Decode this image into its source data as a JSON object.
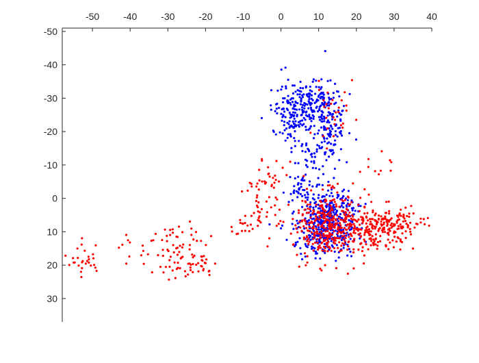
{
  "chart_data": {
    "type": "scatter",
    "xlim": [
      -58,
      40
    ],
    "ylim": [
      -51,
      37
    ],
    "x_axis_position": "top",
    "y_axis_direction": "reversed",
    "grid": false,
    "x_ticks": [
      -50,
      -40,
      -30,
      -20,
      -10,
      0,
      10,
      20,
      30,
      40
    ],
    "y_ticks": [
      -50,
      -40,
      -30,
      -20,
      -10,
      0,
      10,
      20,
      30
    ],
    "colors": {
      "series_blue": "#0000ff",
      "series_red": "#ff0000",
      "axis": "#262626"
    },
    "clusters": [
      {
        "series": "red",
        "cx": -52,
        "cy": 18.5,
        "sx": 2.5,
        "sy": 2.5,
        "n": 28
      },
      {
        "series": "red",
        "cx": -38,
        "cy": 15,
        "sx": 2.5,
        "sy": 3,
        "n": 12
      },
      {
        "series": "red",
        "cx": -27,
        "cy": 13,
        "sx": 4,
        "sy": 3,
        "n": 45
      },
      {
        "series": "red",
        "cx": -25,
        "cy": 20,
        "sx": 4,
        "sy": 2,
        "n": 45
      },
      {
        "series": "red",
        "cx": -11,
        "cy": 9,
        "sx": 2,
        "sy": 1.5,
        "n": 12
      },
      {
        "series": "red",
        "cx": -6,
        "cy": 3,
        "sx": 2,
        "sy": 6,
        "n": 35
      },
      {
        "series": "red",
        "cx": -3,
        "cy": -6,
        "sx": 2,
        "sy": 2.5,
        "n": 25
      },
      {
        "series": "blue",
        "cx": 3,
        "cy": -25,
        "sx": 2.8,
        "sy": 4,
        "n": 130
      },
      {
        "series": "blue",
        "cx": 8,
        "cy": -29,
        "sx": 3,
        "sy": 4,
        "n": 120
      },
      {
        "series": "blue",
        "cx": 13,
        "cy": -22,
        "sx": 2.2,
        "sy": 5.5,
        "n": 130
      },
      {
        "series": "blue",
        "cx": 8,
        "cy": -14,
        "sx": 2.5,
        "sy": 3,
        "n": 30
      },
      {
        "series": "blue",
        "cx": 5,
        "cy": -4,
        "sx": 1.5,
        "sy": 2.5,
        "n": 25
      },
      {
        "series": "blue",
        "cx": 12,
        "cy": 7,
        "sx": 4,
        "sy": 5,
        "n": 480
      },
      {
        "series": "red",
        "cx": 13,
        "cy": 8,
        "sx": 5.5,
        "sy": 5,
        "n": 380
      },
      {
        "series": "red",
        "cx": 25,
        "cy": 9,
        "sx": 5,
        "sy": 3,
        "n": 160
      },
      {
        "series": "red",
        "cx": 30,
        "cy": 7,
        "sx": 4,
        "sy": 2.5,
        "n": 60
      },
      {
        "series": "red",
        "cx": 14,
        "cy": -25,
        "sx": 3.5,
        "sy": 6,
        "n": 30
      },
      {
        "series": "red",
        "cx": 26,
        "cy": -9,
        "sx": 2.5,
        "sy": 2,
        "n": 10
      }
    ]
  }
}
